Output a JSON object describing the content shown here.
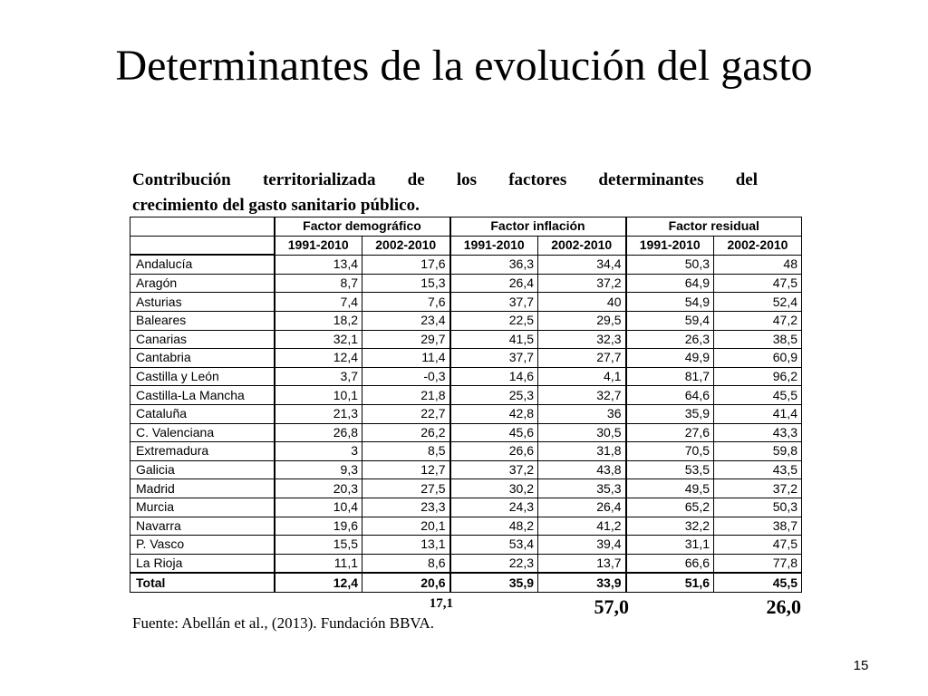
{
  "slide": {
    "title": "Determinantes de la evolución del gasto",
    "page_number": "15"
  },
  "table": {
    "caption_line1": "Contribución territorializada de los factores determinantes del",
    "caption_line2": "crecimiento del gasto sanitario público.",
    "groups": [
      "Factor demográfico",
      "Factor inflación",
      "Factor residual"
    ],
    "periods": [
      "1991-2010",
      "2002-2010",
      "1991-2010",
      "2002-2010",
      "1991-2010",
      "2002-2010"
    ],
    "rows": [
      {
        "name": "Andalucía",
        "values": [
          "13,4",
          "17,6",
          "36,3",
          "34,4",
          "50,3",
          "48"
        ]
      },
      {
        "name": "Aragón",
        "values": [
          "8,7",
          "15,3",
          "26,4",
          "37,2",
          "64,9",
          "47,5"
        ]
      },
      {
        "name": "Asturias",
        "values": [
          "7,4",
          "7,6",
          "37,7",
          "40",
          "54,9",
          "52,4"
        ]
      },
      {
        "name": "Baleares",
        "values": [
          "18,2",
          "23,4",
          "22,5",
          "29,5",
          "59,4",
          "47,2"
        ]
      },
      {
        "name": "Canarias",
        "values": [
          "32,1",
          "29,7",
          "41,5",
          "32,3",
          "26,3",
          "38,5"
        ]
      },
      {
        "name": "Cantabria",
        "values": [
          "12,4",
          "11,4",
          "37,7",
          "27,7",
          "49,9",
          "60,9"
        ]
      },
      {
        "name": "Castilla y León",
        "values": [
          "3,7",
          "-0,3",
          "14,6",
          "4,1",
          "81,7",
          "96,2"
        ]
      },
      {
        "name": "Castilla-La Mancha",
        "values": [
          "10,1",
          "21,8",
          "25,3",
          "32,7",
          "64,6",
          "45,5"
        ]
      },
      {
        "name": "Cataluña",
        "values": [
          "21,3",
          "22,7",
          "42,8",
          "36",
          "35,9",
          "41,4"
        ]
      },
      {
        "name": "C. Valenciana",
        "values": [
          "26,8",
          "26,2",
          "45,6",
          "30,5",
          "27,6",
          "43,3"
        ]
      },
      {
        "name": "Extremadura",
        "values": [
          "3",
          "8,5",
          "26,6",
          "31,8",
          "70,5",
          "59,8"
        ]
      },
      {
        "name": "Galicia",
        "values": [
          "9,3",
          "12,7",
          "37,2",
          "43,8",
          "53,5",
          "43,5"
        ]
      },
      {
        "name": "Madrid",
        "values": [
          "20,3",
          "27,5",
          "30,2",
          "35,3",
          "49,5",
          "37,2"
        ]
      },
      {
        "name": "Murcia",
        "values": [
          "10,4",
          "23,3",
          "24,3",
          "26,4",
          "65,2",
          "50,3"
        ]
      },
      {
        "name": "Navarra",
        "values": [
          "19,6",
          "20,1",
          "48,2",
          "41,2",
          "32,2",
          "38,7"
        ]
      },
      {
        "name": "P. Vasco",
        "values": [
          "15,5",
          "13,1",
          "53,4",
          "39,4",
          "31,1",
          "47,5"
        ]
      },
      {
        "name": "La Rioja",
        "values": [
          "11,1",
          "8,6",
          "22,3",
          "13,7",
          "66,6",
          "77,8"
        ]
      }
    ],
    "total": {
      "name": "Total",
      "values": [
        "12,4",
        "20,6",
        "35,9",
        "33,9",
        "51,6",
        "45,5"
      ]
    },
    "extra_values": [
      "17,1",
      "57,0",
      "26,0"
    ],
    "source": "Fuente: Abellán et al., (2013). Fundación BBVA."
  }
}
